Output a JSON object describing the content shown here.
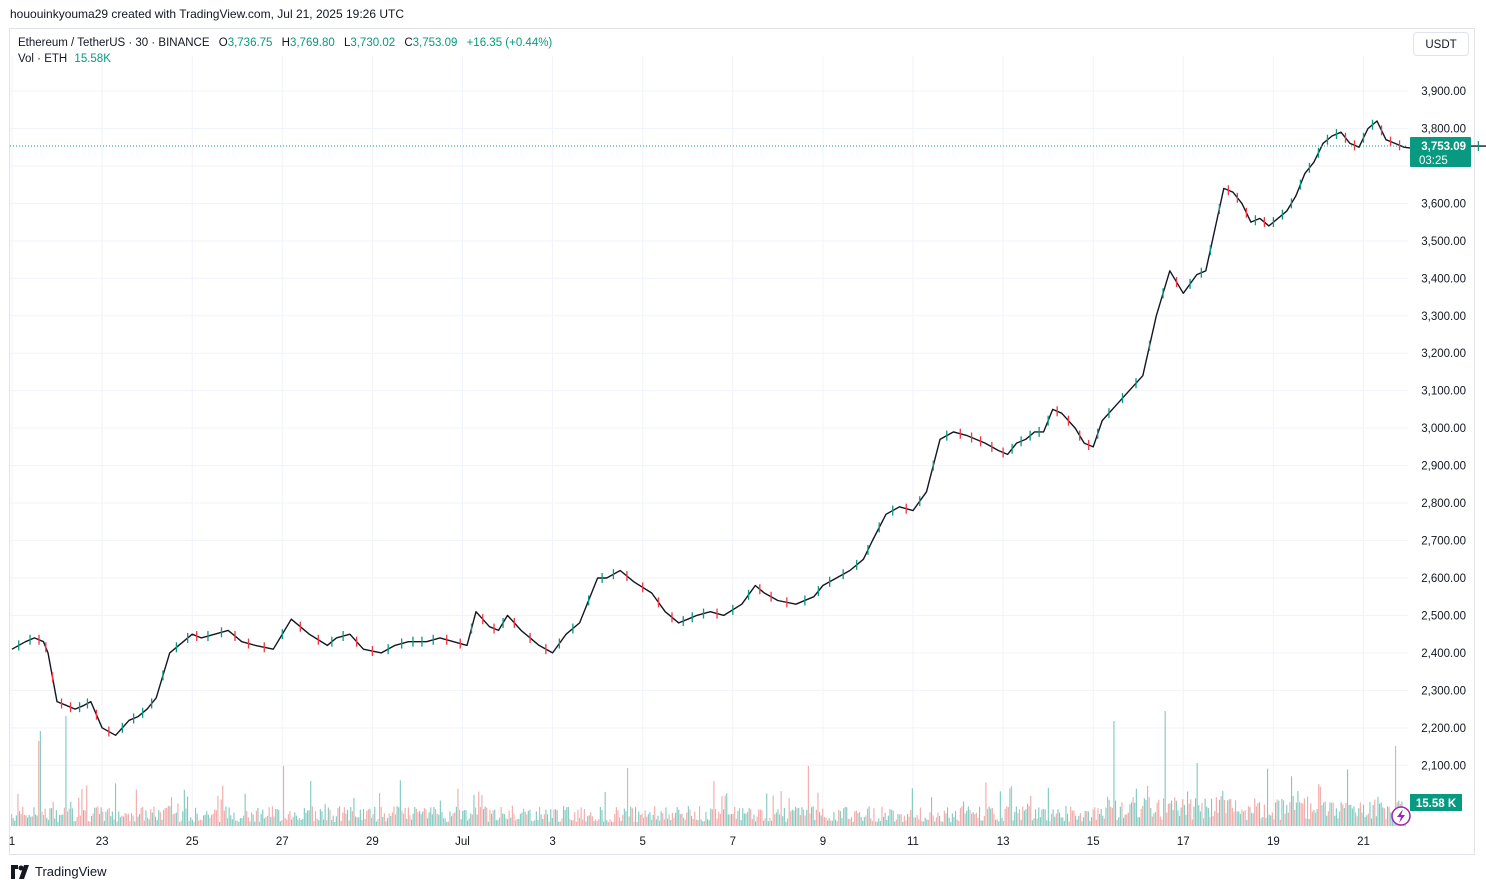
{
  "header": {
    "text": "hououinkyouma29 created with TradingView.com, Jul 21, 2025 19:26 UTC"
  },
  "legend": {
    "symbol": "Ethereum / TetherUS · 30 · BINANCE",
    "o_label": "O",
    "o": "3,736.75",
    "h_label": "H",
    "h": "3,769.80",
    "l_label": "L",
    "l": "3,730.02",
    "c_label": "C",
    "c": "3,753.09",
    "change": "+16.35 (+0.44%)",
    "vol_label": "Vol · ETH",
    "vol_value": "15.58K"
  },
  "currency_button": "USDT",
  "price_badge": {
    "value": "3,753.09",
    "countdown": "03:25"
  },
  "volume_badge": "15.58 K",
  "footer": {
    "brand": "TradingView"
  },
  "colors": {
    "up": "#089981",
    "down": "#f23645",
    "line": "#131722",
    "grid": "#f0f3fa",
    "badge": "#089981",
    "vol_up": "#7ec8bd",
    "vol_down": "#f0a8a8"
  },
  "chart_data": {
    "type": "line",
    "title": "Ethereum / TetherUS · 30 · BINANCE",
    "ylabel": "USDT",
    "ylim": [
      2050,
      3960
    ],
    "x_ticks": [
      "1",
      "23",
      "25",
      "27",
      "29",
      "Jul",
      "3",
      "5",
      "7",
      "9",
      "11",
      "13",
      "15",
      "17",
      "19",
      "21"
    ],
    "y_ticks": [
      "3,900.00",
      "3,800.00",
      "3,600.00",
      "3,500.00",
      "3,400.00",
      "3,300.00",
      "3,200.00",
      "3,100.00",
      "3,000.00",
      "2,900.00",
      "2,800.00",
      "2,700.00",
      "2,600.00",
      "2,500.00",
      "2,400.00",
      "2,300.00",
      "2,200.00",
      "2,100.00"
    ],
    "last_price": 3753.09,
    "x_days": [
      0,
      0.3,
      0.5,
      0.7,
      0.8,
      1.0,
      1.2,
      1.4,
      1.6,
      1.75,
      2.0,
      2.3,
      2.6,
      2.8,
      3.0,
      3.2,
      3.5,
      3.8,
      4.0,
      4.2,
      4.5,
      4.8,
      5.1,
      5.4,
      5.8,
      6.2,
      6.6,
      7.0,
      7.2,
      7.5,
      7.8,
      8.2,
      8.5,
      8.8,
      9.0,
      9.2,
      9.5,
      9.8,
      10.1,
      10.3,
      10.6,
      10.8,
      11.0,
      11.3,
      11.7,
      12.0,
      12.3,
      12.6,
      13.0,
      13.2,
      13.5,
      13.8,
      14.2,
      14.5,
      14.8,
      15.0,
      15.2,
      15.5,
      15.8,
      16.2,
      16.5,
      16.7,
      17.0,
      17.4,
      17.8,
      18.0,
      18.3,
      18.6,
      18.9,
      19.1,
      19.4,
      19.7,
      20.0,
      20.3,
      20.6,
      20.9,
      21.2,
      21.4,
      21.6,
      21.9,
      22.1,
      22.3,
      22.5,
      22.7,
      22.9,
      23.1,
      23.3,
      23.6,
      23.8,
      24.0,
      24.2,
      24.5,
      24.8,
      25.1,
      25.4,
      25.7,
      26.0,
      26.3,
      26.5,
      26.7,
      26.9,
      27.1,
      27.3,
      27.5,
      27.7,
      27.9,
      28.1,
      28.3,
      28.5,
      28.7,
      28.9,
      29.1,
      29.3,
      29.5,
      29.7,
      29.9,
      30.1,
      30.3,
      30.5,
      30.7,
      30.9,
      31.2,
      31.5,
      31.8,
      32.1,
      32.4,
      32.7,
      33.0,
      33.3
    ],
    "series": [
      {
        "values": [
          2410,
          2430,
          2440,
          2430,
          2400,
          2270,
          2260,
          2250,
          2260,
          2270,
          2200,
          2180,
          2220,
          2230,
          2250,
          2280,
          2400,
          2430,
          2450,
          2440,
          2450,
          2460,
          2430,
          2420,
          2410,
          2490,
          2450,
          2420,
          2440,
          2450,
          2410,
          2400,
          2420,
          2430,
          2430,
          2430,
          2440,
          2430,
          2420,
          2510,
          2470,
          2460,
          2500,
          2460,
          2420,
          2400,
          2450,
          2480,
          2600,
          2600,
          2620,
          2590,
          2560,
          2510,
          2480,
          2490,
          2500,
          2510,
          2500,
          2530,
          2580,
          2560,
          2540,
          2530,
          2550,
          2580,
          2600,
          2620,
          2650,
          2700,
          2770,
          2790,
          2780,
          2830,
          2970,
          2990,
          2980,
          2970,
          2960,
          2940,
          2930,
          2960,
          2970,
          2990,
          2990,
          3050,
          3040,
          3000,
          2960,
          2950,
          3020,
          3060,
          3100,
          3140,
          3300,
          3420,
          3360,
          3410,
          3420,
          3530,
          3640,
          3630,
          3600,
          3550,
          3560,
          3540,
          3560,
          3580,
          3620,
          3680,
          3710,
          3760,
          3780,
          3790,
          3760,
          3750,
          3800,
          3820,
          3770,
          3760,
          3750,
          3745,
          3753,
          3753,
          3753,
          3753,
          3753,
          3753,
          3753
        ]
      }
    ]
  }
}
